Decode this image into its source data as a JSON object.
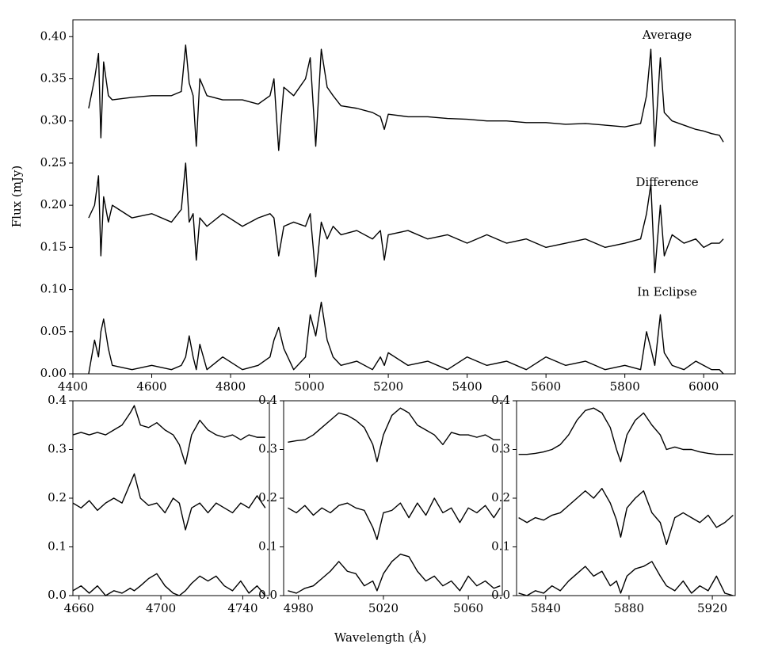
{
  "xlabel": "Wavelength (Å)",
  "chart_data": [
    {
      "type": "line",
      "ylabel": "Flux (mJy)",
      "xlim": [
        4400,
        6080
      ],
      "ylim": [
        0,
        0.42
      ],
      "xticks": [
        4400,
        4600,
        4800,
        5000,
        5200,
        5400,
        5600,
        5800,
        6000
      ],
      "yticks": [
        {
          "value": 0,
          "label": "0.00"
        },
        {
          "value": 0.05,
          "label": "0.05"
        },
        {
          "value": 0.1,
          "label": "0.10"
        },
        {
          "value": 0.15,
          "label": "0.15"
        },
        {
          "value": 0.2,
          "label": "0.20"
        },
        {
          "value": 0.25,
          "label": "0.25"
        },
        {
          "value": 0.3,
          "label": "0.30"
        },
        {
          "value": 0.35,
          "label": "0.35"
        },
        {
          "value": 0.4,
          "label": "0.40"
        }
      ],
      "x": [
        4440,
        4455,
        4465,
        4471,
        4478,
        4490,
        4500,
        4550,
        4600,
        4650,
        4675,
        4686,
        4695,
        4705,
        4713,
        4722,
        4740,
        4780,
        4830,
        4870,
        4900,
        4910,
        4922,
        4935,
        4960,
        4990,
        5002,
        5016,
        5030,
        5045,
        5060,
        5080,
        5120,
        5160,
        5180,
        5190,
        5200,
        5250,
        5300,
        5350,
        5400,
        5450,
        5500,
        5550,
        5600,
        5650,
        5700,
        5750,
        5800,
        5840,
        5855,
        5866,
        5876,
        5890,
        5900,
        5920,
        5950,
        5980,
        6000,
        6020,
        6040,
        6050
      ],
      "series": [
        {
          "name": "Average",
          "color": "#000000",
          "values": [
            0.315,
            0.35,
            0.38,
            0.28,
            0.37,
            0.33,
            0.325,
            0.328,
            0.33,
            0.33,
            0.335,
            0.39,
            0.345,
            0.33,
            0.27,
            0.35,
            0.33,
            0.325,
            0.325,
            0.32,
            0.33,
            0.35,
            0.265,
            0.34,
            0.33,
            0.35,
            0.375,
            0.27,
            0.385,
            0.34,
            0.33,
            0.318,
            0.315,
            0.31,
            0.305,
            0.29,
            0.308,
            0.305,
            0.305,
            0.303,
            0.302,
            0.3,
            0.3,
            0.298,
            0.298,
            0.296,
            0.297,
            0.295,
            0.293,
            0.297,
            0.33,
            0.385,
            0.27,
            0.375,
            0.31,
            0.3,
            0.295,
            0.29,
            0.288,
            0.285,
            0.283,
            0.275
          ]
        },
        {
          "name": "Difference",
          "color": "#000000",
          "values": [
            0.185,
            0.2,
            0.235,
            0.14,
            0.21,
            0.18,
            0.2,
            0.185,
            0.19,
            0.18,
            0.195,
            0.25,
            0.18,
            0.19,
            0.135,
            0.185,
            0.175,
            0.19,
            0.175,
            0.185,
            0.19,
            0.185,
            0.14,
            0.175,
            0.18,
            0.175,
            0.19,
            0.115,
            0.18,
            0.16,
            0.175,
            0.165,
            0.17,
            0.16,
            0.17,
            0.135,
            0.165,
            0.17,
            0.16,
            0.165,
            0.155,
            0.165,
            0.155,
            0.16,
            0.15,
            0.155,
            0.16,
            0.15,
            0.155,
            0.16,
            0.19,
            0.225,
            0.12,
            0.2,
            0.14,
            0.165,
            0.155,
            0.16,
            0.15,
            0.155,
            0.155,
            0.16
          ]
        },
        {
          "name": "In Eclipse",
          "color": "#000000",
          "values": [
            0,
            0.04,
            0.02,
            0.05,
            0.065,
            0.03,
            0.01,
            0.005,
            0.01,
            0.005,
            0.01,
            0.02,
            0.045,
            0.02,
            0.005,
            0.035,
            0.005,
            0.02,
            0.005,
            0.01,
            0.02,
            0.04,
            0.055,
            0.03,
            0.005,
            0.02,
            0.07,
            0.045,
            0.085,
            0.04,
            0.02,
            0.01,
            0.015,
            0.005,
            0.02,
            0.01,
            0.025,
            0.01,
            0.015,
            0.005,
            0.02,
            0.01,
            0.015,
            0.005,
            0.02,
            0.01,
            0.015,
            0.005,
            0.01,
            0.005,
            0.05,
            0.03,
            0.01,
            0.07,
            0.025,
            0.01,
            0.005,
            0.015,
            0.01,
            0.005,
            0.005,
            0
          ]
        }
      ]
    },
    {
      "type": "line",
      "xlim": [
        4657,
        4753
      ],
      "ylim": [
        0,
        0.4
      ],
      "xticks": [
        4660,
        4700,
        4740
      ],
      "yticks": [
        {
          "value": 0,
          "label": "0.0"
        },
        {
          "value": 0.1,
          "label": "0.1"
        },
        {
          "value": 0.2,
          "label": "0.2"
        },
        {
          "value": 0.3,
          "label": "0.3"
        },
        {
          "value": 0.4,
          "label": "0.4"
        }
      ],
      "x": [
        4657,
        4661,
        4665,
        4669,
        4673,
        4677,
        4681,
        4685,
        4687,
        4690,
        4694,
        4698,
        4702,
        4706,
        4709,
        4712,
        4715,
        4719,
        4723,
        4727,
        4731,
        4735,
        4739,
        4743,
        4747,
        4751
      ],
      "series": [
        {
          "color": "#000000",
          "values": [
            0.33,
            0.335,
            0.33,
            0.335,
            0.33,
            0.34,
            0.35,
            0.375,
            0.39,
            0.35,
            0.345,
            0.355,
            0.34,
            0.33,
            0.31,
            0.27,
            0.33,
            0.36,
            0.34,
            0.33,
            0.325,
            0.33,
            0.32,
            0.33,
            0.325,
            0.325
          ]
        },
        {
          "color": "#000000",
          "values": [
            0.19,
            0.18,
            0.195,
            0.175,
            0.19,
            0.2,
            0.19,
            0.23,
            0.25,
            0.2,
            0.185,
            0.19,
            0.17,
            0.2,
            0.19,
            0.135,
            0.18,
            0.19,
            0.17,
            0.19,
            0.18,
            0.17,
            0.19,
            0.18,
            0.205,
            0.18
          ]
        },
        {
          "color": "#000000",
          "values": [
            0.01,
            0.02,
            0.005,
            0.02,
            0,
            0.01,
            0.005,
            0.015,
            0.01,
            0.02,
            0.035,
            0.045,
            0.02,
            0.005,
            0,
            0.01,
            0.025,
            0.04,
            0.03,
            0.04,
            0.02,
            0.01,
            0.03,
            0.005,
            0.02,
            0
          ]
        }
      ]
    },
    {
      "type": "line",
      "xlim": [
        4973,
        5076
      ],
      "ylim": [
        0,
        0.4
      ],
      "xticks": [
        4980,
        5020,
        5060
      ],
      "yticks": [
        {
          "value": 0,
          "label": "0.0"
        },
        {
          "value": 0.1,
          "label": "0.1"
        },
        {
          "value": 0.2,
          "label": "0.2"
        },
        {
          "value": 0.3,
          "label": "0.3"
        },
        {
          "value": 0.4,
          "label": "0.4"
        }
      ],
      "x": [
        4975,
        4979,
        4983,
        4987,
        4991,
        4995,
        4999,
        5003,
        5007,
        5011,
        5015,
        5017,
        5020,
        5024,
        5028,
        5032,
        5036,
        5040,
        5044,
        5048,
        5052,
        5056,
        5060,
        5064,
        5068,
        5072,
        5075
      ],
      "series": [
        {
          "color": "#000000",
          "values": [
            0.315,
            0.318,
            0.32,
            0.33,
            0.345,
            0.36,
            0.375,
            0.37,
            0.36,
            0.345,
            0.31,
            0.275,
            0.33,
            0.37,
            0.385,
            0.375,
            0.35,
            0.34,
            0.33,
            0.31,
            0.335,
            0.33,
            0.33,
            0.325,
            0.33,
            0.32,
            0.32
          ]
        },
        {
          "color": "#000000",
          "values": [
            0.18,
            0.17,
            0.185,
            0.165,
            0.18,
            0.17,
            0.185,
            0.19,
            0.18,
            0.175,
            0.14,
            0.115,
            0.17,
            0.175,
            0.19,
            0.16,
            0.19,
            0.165,
            0.2,
            0.17,
            0.18,
            0.15,
            0.18,
            0.17,
            0.185,
            0.16,
            0.18
          ]
        },
        {
          "color": "#000000",
          "values": [
            0.01,
            0.005,
            0.015,
            0.02,
            0.035,
            0.05,
            0.07,
            0.05,
            0.045,
            0.02,
            0.03,
            0.01,
            0.045,
            0.07,
            0.085,
            0.08,
            0.05,
            0.03,
            0.04,
            0.02,
            0.03,
            0.01,
            0.04,
            0.02,
            0.03,
            0.015,
            0.02
          ]
        }
      ]
    },
    {
      "type": "line",
      "xlim": [
        5826,
        5931
      ],
      "ylim": [
        0,
        0.4
      ],
      "xticks": [
        5840,
        5880,
        5920
      ],
      "yticks": [
        {
          "value": 0,
          "label": "0.0"
        },
        {
          "value": 0.1,
          "label": "0.1"
        },
        {
          "value": 0.2,
          "label": "0.2"
        },
        {
          "value": 0.3,
          "label": "0.3"
        },
        {
          "value": 0.4,
          "label": "0.4"
        }
      ],
      "x": [
        5827,
        5831,
        5835,
        5839,
        5843,
        5847,
        5851,
        5855,
        5859,
        5863,
        5867,
        5871,
        5874,
        5876,
        5879,
        5883,
        5887,
        5891,
        5895,
        5898,
        5902,
        5906,
        5910,
        5914,
        5918,
        5922,
        5926,
        5930
      ],
      "series": [
        {
          "color": "#000000",
          "values": [
            0.29,
            0.29,
            0.292,
            0.295,
            0.3,
            0.31,
            0.33,
            0.36,
            0.38,
            0.385,
            0.375,
            0.345,
            0.3,
            0.275,
            0.33,
            0.36,
            0.375,
            0.35,
            0.33,
            0.3,
            0.305,
            0.3,
            0.3,
            0.295,
            0.292,
            0.29,
            0.29,
            0.29
          ]
        },
        {
          "color": "#000000",
          "values": [
            0.16,
            0.15,
            0.16,
            0.155,
            0.165,
            0.17,
            0.185,
            0.2,
            0.215,
            0.2,
            0.22,
            0.19,
            0.155,
            0.12,
            0.18,
            0.2,
            0.215,
            0.17,
            0.15,
            0.105,
            0.16,
            0.17,
            0.16,
            0.15,
            0.165,
            0.14,
            0.15,
            0.165
          ]
        },
        {
          "color": "#000000",
          "values": [
            0.005,
            0,
            0.01,
            0.005,
            0.02,
            0.01,
            0.03,
            0.045,
            0.06,
            0.04,
            0.05,
            0.02,
            0.03,
            0.005,
            0.04,
            0.055,
            0.06,
            0.07,
            0.04,
            0.02,
            0.01,
            0.03,
            0.005,
            0.02,
            0.01,
            0.04,
            0.005,
            0
          ]
        }
      ]
    }
  ]
}
